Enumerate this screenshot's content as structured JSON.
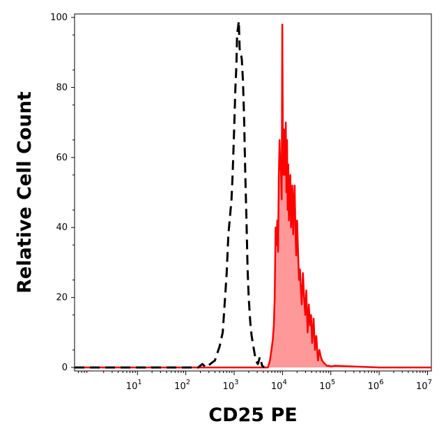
{
  "chart_data": {
    "type": "area",
    "xlabel": "CD25 PE",
    "ylabel": "Relative Cell Count",
    "x_scale": "log10",
    "xlim": [
      0.5,
      12000000
    ],
    "ylim": [
      -1,
      101
    ],
    "grid": false,
    "legend": "none",
    "y_ticks": [
      0,
      20,
      40,
      60,
      80,
      100
    ],
    "x_ticks": [
      {
        "base": "10",
        "exp": "1",
        "value": 10
      },
      {
        "base": "10",
        "exp": "2",
        "value": 100
      },
      {
        "base": "10",
        "exp": "3",
        "value": 1000
      },
      {
        "base": "10",
        "exp": "4",
        "value": 10000
      },
      {
        "base": "10",
        "exp": "5",
        "value": 100000
      },
      {
        "base": "10",
        "exp": "6",
        "value": 1000000
      },
      {
        "base": "10",
        "exp": "7",
        "value": 10000000
      }
    ],
    "series": [
      {
        "style": "dashed",
        "color": "#000000",
        "x": [
          0.5,
          100,
          180,
          220,
          260,
          320,
          400,
          500,
          580,
          650,
          700,
          760,
          820,
          880,
          930,
          1000,
          1060,
          1110,
          1150,
          1200,
          1250,
          1300,
          1370,
          1440,
          1520,
          1600,
          1700,
          1800,
          1900,
          2000,
          2150,
          2300,
          2500,
          2800,
          3100,
          3400,
          3800,
          4200
        ],
        "y": [
          0,
          0,
          0,
          1,
          0,
          1,
          2,
          6,
          10,
          20,
          27,
          38,
          43,
          48,
          55,
          68,
          80,
          86,
          95,
          97,
          99,
          91,
          90,
          88,
          82,
          72,
          55,
          42,
          28,
          20,
          13,
          9,
          6,
          2,
          1,
          3,
          0.5,
          0
        ]
      },
      {
        "style": "filled",
        "color": "#ff0000",
        "fill": "#ff9999",
        "x": [
          0.5,
          5000,
          5500,
          5900,
          6300,
          6600,
          6900,
          7200,
          7500,
          7800,
          8100,
          8400,
          8700,
          9000,
          9300,
          9600,
          9900,
          10200,
          10500,
          10800,
          11100,
          11400,
          11700,
          12000,
          12400,
          12800,
          13200,
          13600,
          14000,
          14500,
          15000,
          15500,
          16000,
          16600,
          17200,
          17800,
          18500,
          19200,
          20000,
          21000,
          22000,
          23000,
          24000,
          25000,
          26500,
          28000,
          29500,
          31000,
          33000,
          35000,
          37000,
          39000,
          41000,
          44000,
          47000,
          50000,
          54000,
          58000,
          62000,
          66000,
          70000,
          76000,
          82000,
          90000,
          100000,
          120000,
          1000000,
          12000000
        ],
        "y": [
          0,
          0,
          2,
          5,
          8,
          12,
          20,
          40,
          35,
          42,
          33,
          55,
          65,
          58,
          56,
          48,
          98,
          62,
          55,
          68,
          60,
          55,
          70,
          50,
          65,
          45,
          58,
          42,
          48,
          55,
          40,
          46,
          52,
          38,
          47,
          52,
          40,
          32,
          42,
          33,
          25,
          28,
          22,
          18,
          27,
          20,
          15,
          22,
          10,
          18,
          12,
          15,
          7,
          14,
          5,
          9,
          2,
          5,
          3,
          2,
          1.5,
          1,
          0.5,
          0.5,
          0.3,
          0.5,
          0,
          0
        ]
      }
    ]
  }
}
